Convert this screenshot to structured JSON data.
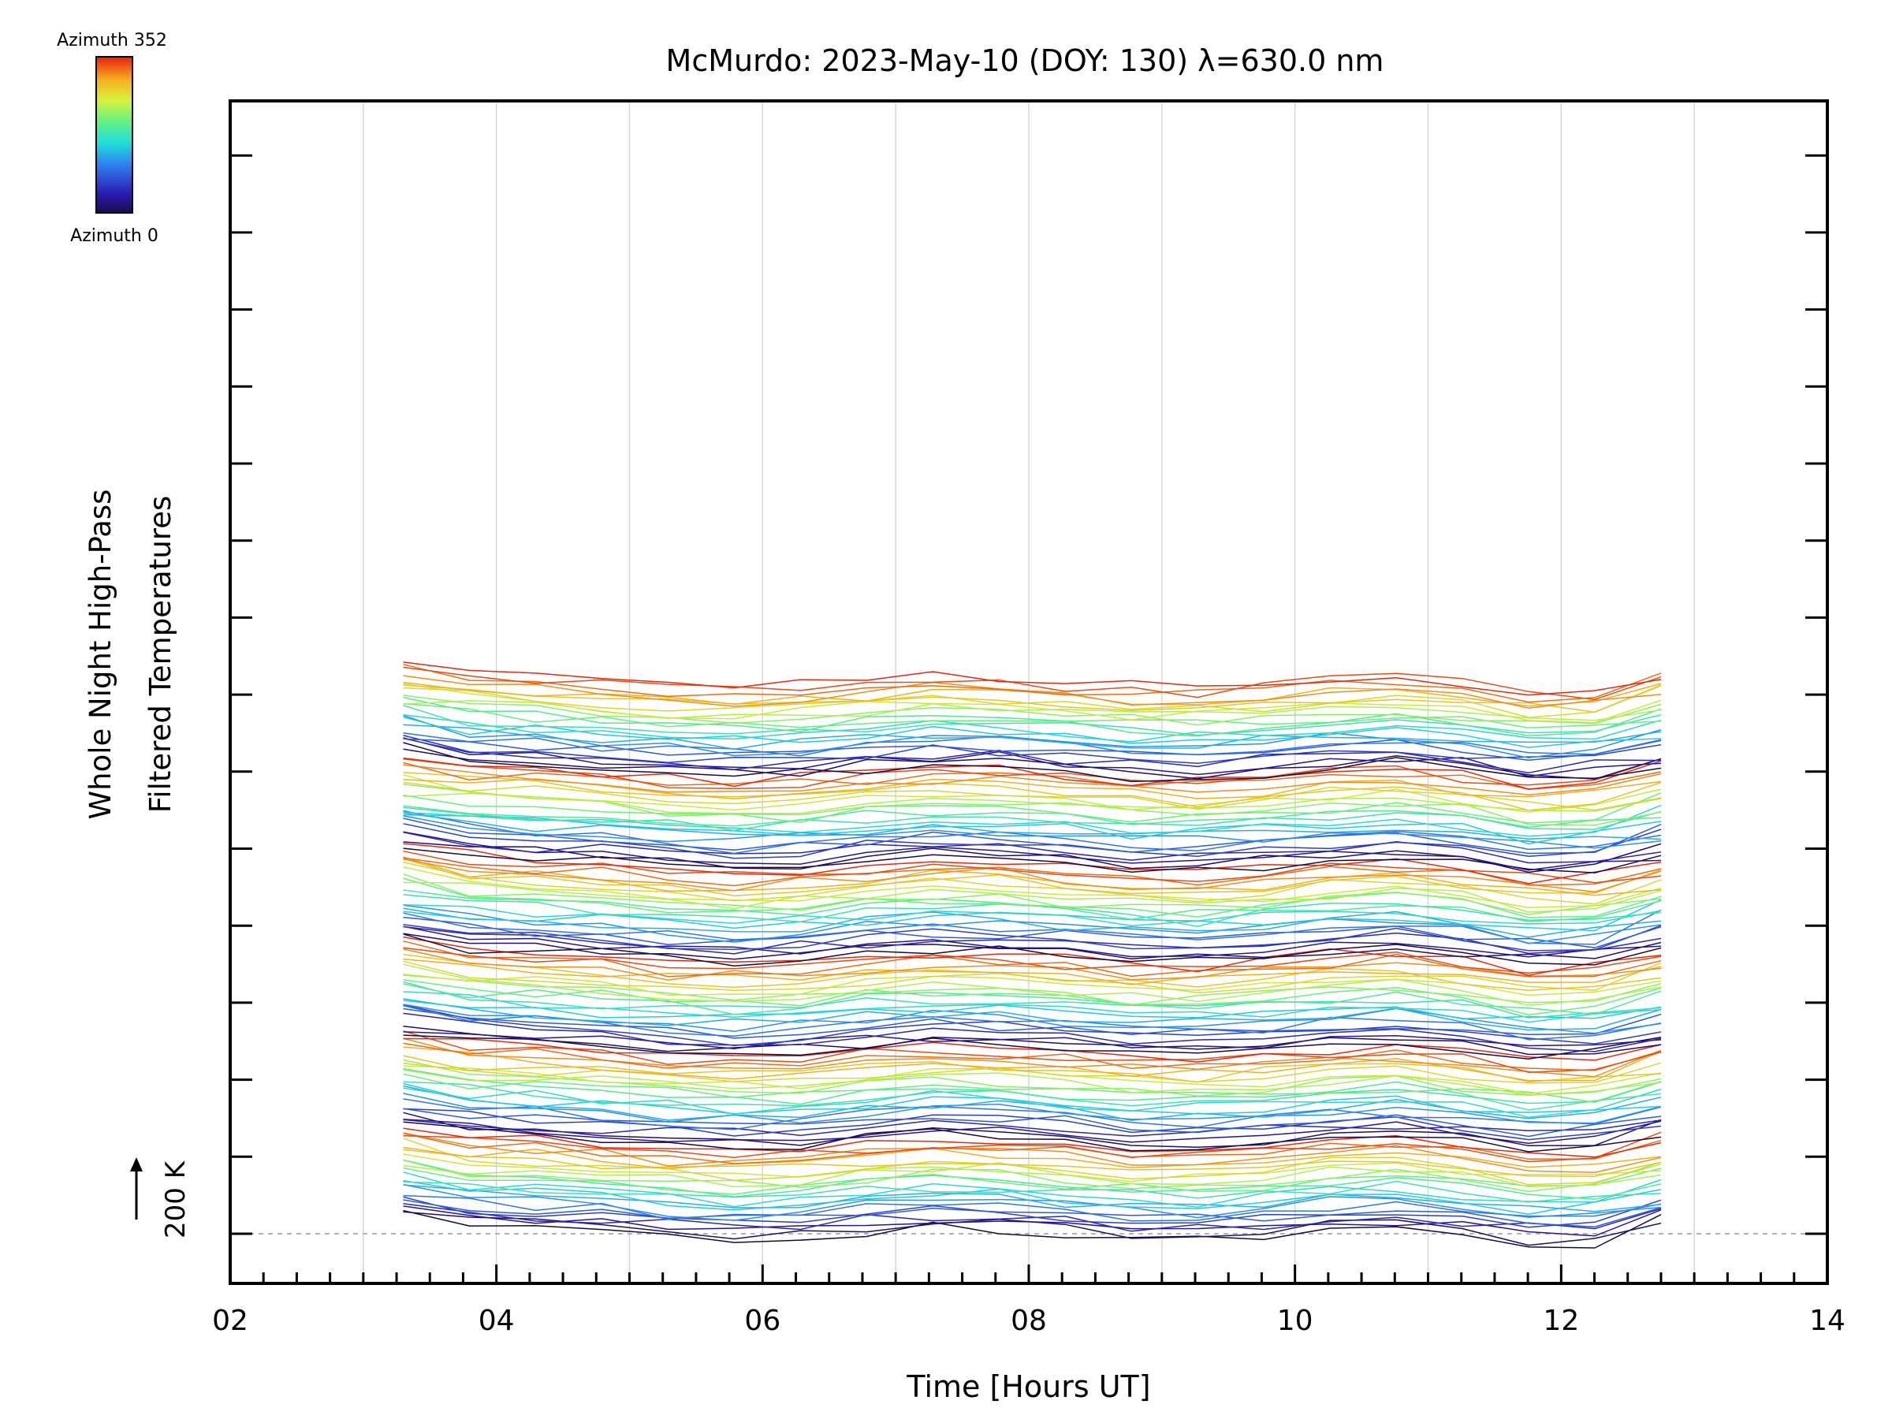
{
  "colorbar": {
    "top_label": "Azimuth 352",
    "bottom_label": "Azimuth 0"
  },
  "chart_data": {
    "type": "line",
    "title": "McMurdo: 2023-May-10 (DOY: 130) λ=630.0 nm",
    "xlabel": "Time [Hours UT]",
    "ylabel_line1": "Whole Night High-Pass",
    "ylabel_line2": "Filtered Temperatures",
    "scale_label": "200 K",
    "xlim": [
      2,
      14
    ],
    "x_ticks": [
      "02",
      "04",
      "06",
      "08",
      "10",
      "12",
      "14"
    ],
    "x_tick_values": [
      2,
      4,
      6,
      8,
      10,
      12,
      14
    ],
    "x_gridlines": [
      3,
      4,
      5,
      6,
      7,
      8,
      9,
      10,
      11,
      12,
      13
    ],
    "x_time_start": 3.3,
    "x_time_end": 12.75,
    "sample_count": 20,
    "y_major_ticks": 15,
    "series_count": 144,
    "offset_per_series_K": 10,
    "y_range_K": [
      -45,
      1510
    ],
    "azimuth_range_deg": [
      0,
      352
    ],
    "grid": true,
    "baseline_dashed": true
  }
}
